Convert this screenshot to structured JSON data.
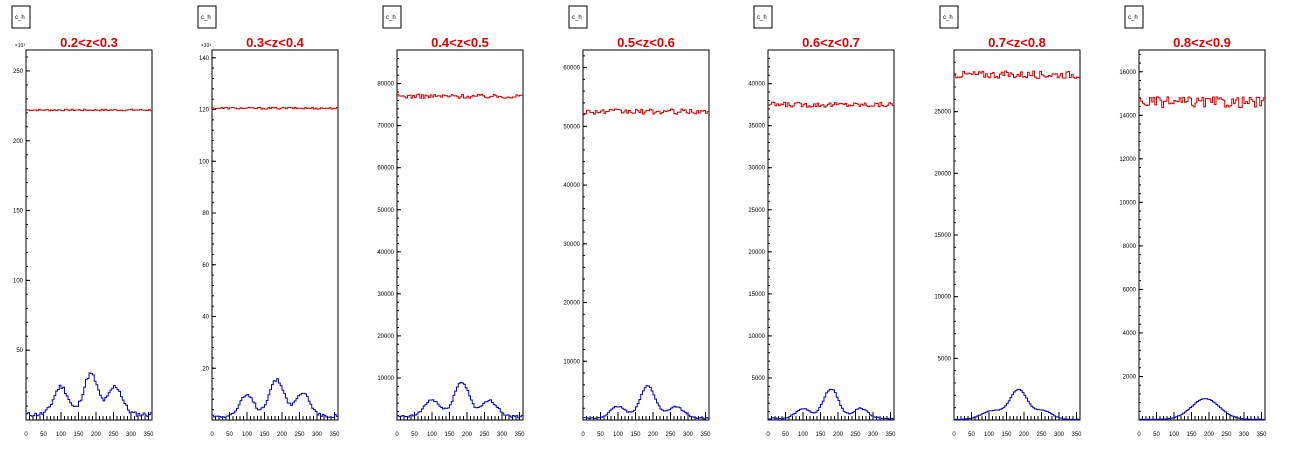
{
  "colors": {
    "top_series": "#d40000",
    "bottom_series": "#0000c8",
    "title": "#e00000",
    "axis": "#000000"
  },
  "chart_data": [
    {
      "type": "line",
      "title": "0.2<z<0.3",
      "stat_box": "c_h",
      "exponent": "×10³",
      "x": [
        0,
        50,
        100,
        150,
        200,
        250,
        300,
        350
      ],
      "xlim": [
        0,
        360
      ],
      "ylim": [
        0,
        265
      ],
      "xticks": [
        "0",
        "50",
        "100",
        "150",
        "200",
        "250",
        "300",
        "350"
      ],
      "yticks": [
        {
          "v": 50,
          "label": "50"
        },
        {
          "v": 100,
          "label": "100"
        },
        {
          "v": 150,
          "label": "150"
        },
        {
          "v": 200,
          "label": "200"
        },
        {
          "v": 250,
          "label": "250"
        }
      ],
      "series": [
        {
          "level": 222,
          "noise": 0.6
        },
        {
          "peaks": [
            [
              100,
              20,
              20
            ],
            [
              185,
              29,
              20
            ],
            [
              255,
              20,
              20
            ]
          ],
          "base": 4
        }
      ]
    },
    {
      "type": "line",
      "title": "0.3<z<0.4",
      "stat_box": "c_h",
      "exponent": "×10³",
      "x": [
        0,
        50,
        100,
        150,
        200,
        250,
        300,
        350
      ],
      "xlim": [
        0,
        360
      ],
      "ylim": [
        0,
        143
      ],
      "xticks": [
        "0",
        "50",
        "100",
        "150",
        "200",
        "250",
        "300",
        "350"
      ],
      "yticks": [
        {
          "v": 20,
          "label": "20"
        },
        {
          "v": 40,
          "label": "40"
        },
        {
          "v": 60,
          "label": "60"
        },
        {
          "v": 80,
          "label": "80"
        },
        {
          "v": 100,
          "label": "100"
        },
        {
          "v": 120,
          "label": "120"
        },
        {
          "v": 140,
          "label": "140"
        }
      ],
      "series": [
        {
          "level": 120.5,
          "noise": 0.35
        },
        {
          "peaks": [
            [
              100,
              8,
              20
            ],
            [
              185,
              14,
              22
            ],
            [
              260,
              9,
              20
            ]
          ],
          "base": 1.5
        }
      ]
    },
    {
      "type": "line",
      "title": "0.4<z<0.5",
      "stat_box": "c_h",
      "exponent": "",
      "x": [
        0,
        50,
        100,
        150,
        200,
        250,
        300,
        350
      ],
      "xlim": [
        0,
        360
      ],
      "ylim": [
        0,
        88000
      ],
      "xticks": [
        "0",
        "50",
        "100",
        "150",
        "200",
        "250",
        "300",
        "350"
      ],
      "yticks": [
        {
          "v": 10000,
          "label": "10000"
        },
        {
          "v": 20000,
          "label": "20000"
        },
        {
          "v": 30000,
          "label": "30000"
        },
        {
          "v": 40000,
          "label": "40000"
        },
        {
          "v": 50000,
          "label": "50000"
        },
        {
          "v": 60000,
          "label": "60000"
        },
        {
          "v": 70000,
          "label": "70000"
        },
        {
          "v": 80000,
          "label": "80000"
        }
      ],
      "series": [
        {
          "level": 77000,
          "noise": 500
        },
        {
          "peaks": [
            [
              100,
              4000,
              22
            ],
            [
              185,
              8200,
              22
            ],
            [
              265,
              3800,
              22
            ]
          ],
          "base": 800
        }
      ]
    },
    {
      "type": "line",
      "title": "0.5<z<0.6",
      "stat_box": "c_h",
      "exponent": "",
      "x": [
        0,
        50,
        100,
        150,
        200,
        250,
        300,
        350
      ],
      "xlim": [
        0,
        360
      ],
      "ylim": [
        0,
        63000
      ],
      "xticks": [
        "0",
        "50",
        "100",
        "150",
        "200",
        "250",
        "300",
        "350"
      ],
      "yticks": [
        {
          "v": 10000,
          "label": "10000"
        },
        {
          "v": 20000,
          "label": "20000"
        },
        {
          "v": 30000,
          "label": "30000"
        },
        {
          "v": 40000,
          "label": "40000"
        },
        {
          "v": 50000,
          "label": "50000"
        },
        {
          "v": 60000,
          "label": "60000"
        }
      ],
      "series": [
        {
          "level": 52500,
          "noise": 450
        },
        {
          "peaks": [
            [
              100,
              2000,
              22
            ],
            [
              185,
              5500,
              22
            ],
            [
              265,
              2000,
              22
            ]
          ],
          "base": 300
        }
      ]
    },
    {
      "type": "line",
      "title": "0.6<z<0.7",
      "stat_box": "c_h",
      "exponent": "",
      "x": [
        0,
        50,
        100,
        150,
        200,
        250,
        300,
        350
      ],
      "xlim": [
        0,
        360
      ],
      "ylim": [
        0,
        44000
      ],
      "xticks": [
        "0",
        "50",
        "100",
        "150",
        "200",
        "250",
        "300",
        "350"
      ],
      "yticks": [
        {
          "v": 5000,
          "label": "5000"
        },
        {
          "v": 10000,
          "label": "10000"
        },
        {
          "v": 15000,
          "label": "15000"
        },
        {
          "v": 20000,
          "label": "20000"
        },
        {
          "v": 25000,
          "label": "25000"
        },
        {
          "v": 30000,
          "label": "30000"
        },
        {
          "v": 35000,
          "label": "35000"
        },
        {
          "v": 40000,
          "label": "40000"
        }
      ],
      "series": [
        {
          "level": 37500,
          "noise": 300
        },
        {
          "peaks": [
            [
              100,
              1200,
              20
            ],
            [
              180,
              3500,
              22
            ],
            [
              265,
              1200,
              20
            ]
          ],
          "base": 200
        }
      ]
    },
    {
      "type": "line",
      "title": "0.7<z<0.8",
      "stat_box": "c_h",
      "exponent": "",
      "x": [
        0,
        50,
        100,
        150,
        200,
        250,
        300,
        350
      ],
      "xlim": [
        0,
        360
      ],
      "ylim": [
        0,
        30000
      ],
      "xticks": [
        "0",
        "50",
        "100",
        "150",
        "200",
        "250",
        "300",
        "350"
      ],
      "yticks": [
        {
          "v": 5000,
          "label": "5000"
        },
        {
          "v": 10000,
          "label": "10000"
        },
        {
          "v": 15000,
          "label": "15000"
        },
        {
          "v": 20000,
          "label": "20000"
        },
        {
          "v": 25000,
          "label": "25000"
        }
      ],
      "series": [
        {
          "level": 28000,
          "noise": 300
        },
        {
          "peaks": [
            [
              110,
              700,
              30
            ],
            [
              185,
              2400,
              25
            ],
            [
              255,
              700,
              25
            ]
          ],
          "base": 50
        }
      ]
    },
    {
      "type": "line",
      "title": "0.8<z<0.9",
      "stat_box": "c_h",
      "exponent": "",
      "x": [
        0,
        50,
        100,
        150,
        200,
        250,
        300,
        350
      ],
      "xlim": [
        0,
        360
      ],
      "ylim": [
        0,
        17000
      ],
      "xticks": [
        "0",
        "50",
        "100",
        "150",
        "200",
        "250",
        "300",
        "350"
      ],
      "yticks": [
        {
          "v": 2000,
          "label": "2000"
        },
        {
          "v": 4000,
          "label": "4000"
        },
        {
          "v": 6000,
          "label": "6000"
        },
        {
          "v": 8000,
          "label": "8000"
        },
        {
          "v": 10000,
          "label": "10000"
        },
        {
          "v": 12000,
          "label": "12000"
        },
        {
          "v": 14000,
          "label": "14000"
        },
        {
          "v": 16000,
          "label": "16000"
        }
      ],
      "series": [
        {
          "level": 14600,
          "noise": 250
        },
        {
          "peaks": [
            [
              190,
              950,
              40
            ]
          ],
          "base": 30
        }
      ]
    }
  ]
}
